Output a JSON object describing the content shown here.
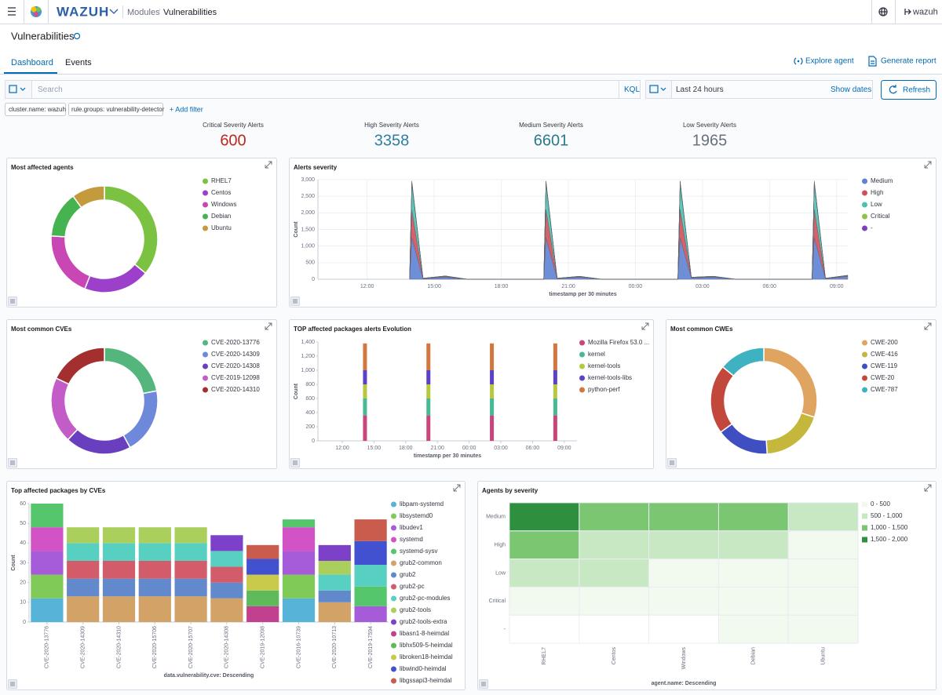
{
  "header": {
    "brand": "WAZUH",
    "breadcrumb": [
      "Modules",
      "/",
      "Vulnerabilities"
    ],
    "user": "wazuh"
  },
  "page_title": "Vulnerabilities",
  "tabs": [
    "Dashboard",
    "Events"
  ],
  "actions": [
    "Explore agent",
    "Generate report"
  ],
  "query_bar": {
    "placeholder": "Search",
    "language": "KQL",
    "time_range": "Last 24 hours",
    "show_dates": "Show dates",
    "refresh": "Refresh"
  },
  "filters": [
    "cluster.name: wazuh",
    "rule.groups: vulnerability-detector"
  ],
  "add_filter": "+ Add filter",
  "metrics": [
    {
      "label": "Critical Severity Alerts",
      "value": 600,
      "color": "#bd271e"
    },
    {
      "label": "High Severity Alerts",
      "value": 3358,
      "color": "#2f7ea2"
    },
    {
      "label": "Medium Severity Alerts",
      "value": 6601,
      "color": "#2a7a8c"
    },
    {
      "label": "Low Severity Alerts",
      "value": 1965,
      "color": "#69707d"
    }
  ],
  "chart_data": [
    {
      "type": "pie",
      "title": "Most affected agents",
      "categories": [
        "RHEL7",
        "Centos",
        "Windows",
        "Debian",
        "Ubuntu"
      ],
      "values": [
        36,
        20,
        20,
        14,
        10
      ],
      "colors": [
        "#7cc242",
        "#9c3fcb",
        "#c947b5",
        "#44b350",
        "#c39a3c"
      ]
    },
    {
      "type": "area",
      "title": "Alerts severity",
      "stacked": true,
      "grid": true,
      "xlabel": "timestamp per 30 minutes",
      "ylabel": "Count",
      "x": [
        13.9,
        14.0,
        14.5,
        15.5,
        16.5,
        19.9,
        20.0,
        20.5,
        21.5,
        22.5,
        25.9,
        26.0,
        26.5,
        27.5,
        28.5,
        31.9,
        32.0,
        32.5,
        33.5
      ],
      "xlim": [
        9.8,
        33.5
      ],
      "xticks": [
        {
          "value": 12,
          "label": "12:00"
        },
        {
          "value": 15,
          "label": "15:00"
        },
        {
          "value": 18,
          "label": "18:00"
        },
        {
          "value": 21,
          "label": "21:00"
        },
        {
          "value": 24,
          "label": "00:00"
        },
        {
          "value": 27,
          "label": "03:00"
        },
        {
          "value": 30,
          "label": "06:00"
        },
        {
          "value": 33,
          "label": "09:00"
        }
      ],
      "ylim": [
        0,
        3000
      ],
      "yticks": [
        0,
        500,
        {
          "value": 1000,
          "label": "1,000"
        },
        {
          "value": 1500,
          "label": "1,500"
        },
        {
          "value": 2000,
          "label": "2,000"
        },
        {
          "value": 2500,
          "label": "2,500"
        },
        {
          "value": 3000,
          "label": "3,000"
        }
      ],
      "series": [
        {
          "name": "Medium",
          "color": "#5f82d4",
          "values": [
            0,
            1250,
            20,
            60,
            0,
            0,
            1250,
            20,
            60,
            0,
            0,
            1250,
            40,
            60,
            0,
            0,
            1250,
            20,
            80
          ]
        },
        {
          "name": "High",
          "color": "#d2505a",
          "values": [
            0,
            850,
            5,
            20,
            0,
            0,
            850,
            5,
            15,
            0,
            0,
            850,
            10,
            15,
            0,
            0,
            850,
            5,
            20
          ]
        },
        {
          "name": "Low",
          "color": "#4dc1b1",
          "values": [
            0,
            780,
            5,
            15,
            0,
            0,
            780,
            5,
            10,
            0,
            0,
            780,
            10,
            10,
            0,
            0,
            780,
            5,
            15
          ]
        },
        {
          "name": "Critical",
          "color": "#8cc34b",
          "values": [
            0,
            60,
            0,
            5,
            0,
            0,
            60,
            0,
            5,
            0,
            0,
            60,
            0,
            5,
            0,
            0,
            60,
            0,
            5
          ]
        },
        {
          "name": "-",
          "color": "#7b3fbf",
          "values": [
            0,
            20,
            0,
            0,
            0,
            0,
            20,
            0,
            0,
            0,
            0,
            20,
            0,
            0,
            0,
            0,
            20,
            0,
            0
          ]
        }
      ]
    },
    {
      "type": "pie",
      "title": "Most common CVEs",
      "categories": [
        "CVE-2020-13776",
        "CVE-2020-14309",
        "CVE-2020-14308",
        "CVE-2019-12098",
        "CVE-2020-14310"
      ],
      "values": [
        22,
        20,
        20,
        20,
        18
      ],
      "colors": [
        "#54b67c",
        "#6f89da",
        "#6a3fbf",
        "#c45cc8",
        "#a3302f"
      ]
    },
    {
      "type": "bar",
      "title": "TOP affected packages alerts Evolution",
      "stacked": true,
      "grid": false,
      "xlabel": "timestamp per 30 minutes",
      "ylabel": "Count",
      "x": [
        14.15,
        20.15,
        26.15,
        32.15
      ],
      "xlim": [
        9.7,
        34.2
      ],
      "xticks": [
        {
          "value": 12,
          "label": "12:00"
        },
        {
          "value": 15,
          "label": "15:00"
        },
        {
          "value": 18,
          "label": "18:00"
        },
        {
          "value": 21,
          "label": "21:00"
        },
        {
          "value": 24,
          "label": "00:00"
        },
        {
          "value": 27,
          "label": "03:00"
        },
        {
          "value": 30,
          "label": "06:00"
        },
        {
          "value": 33,
          "label": "09:00"
        }
      ],
      "ylim": [
        0,
        1400
      ],
      "yticks": [
        0,
        200,
        400,
        600,
        800,
        {
          "value": 1000,
          "label": "1,000"
        },
        {
          "value": 1200,
          "label": "1,200"
        },
        {
          "value": 1400,
          "label": "1,400"
        }
      ],
      "series": [
        {
          "name": "Mozilla Firefox 53.0 ...",
          "color": "#c9457c",
          "values": [
            360,
            360,
            360,
            360
          ]
        },
        {
          "name": "kernel",
          "color": "#47b995",
          "values": [
            240,
            240,
            240,
            240
          ]
        },
        {
          "name": "kernel-tools",
          "color": "#b8c83c",
          "values": [
            200,
            200,
            200,
            200
          ]
        },
        {
          "name": "kernel-tools-libs",
          "color": "#5b40c8",
          "values": [
            200,
            200,
            200,
            200
          ]
        },
        {
          "name": "python-perf",
          "color": "#d2773f",
          "values": [
            380,
            380,
            380,
            380
          ]
        }
      ]
    },
    {
      "type": "pie",
      "title": "Most common CWEs",
      "categories": [
        "CWE-200",
        "CWE-416",
        "CWE-119",
        "CWE-20",
        "CWE-787"
      ],
      "values": [
        30,
        19,
        16,
        21,
        14
      ],
      "colors": [
        "#e0a461",
        "#c5b63c",
        "#3f4ec0",
        "#c2483b",
        "#3eb2c0"
      ]
    },
    {
      "type": "bar",
      "title": "Top affected packages by CVEs",
      "stacked": true,
      "grid": false,
      "xlabel": "data.vulnerability.cve: Descending",
      "ylabel": "Count",
      "categories": [
        "CVE-2020-13776",
        "CVE-2020-14309",
        "CVE-2020-14310",
        "CVE-2020-15706",
        "CVE-2020-15707",
        "CVE-2020-14308",
        "CVE-2019-12098",
        "CVE-2016-10739",
        "CVE-2020-10713",
        "CVE-2019-17594"
      ],
      "ylim": [
        0,
        60
      ],
      "yticks": [
        0,
        10,
        20,
        30,
        40,
        50,
        60
      ],
      "series": [
        {
          "name": "libpam-systemd",
          "color": "#56b4d8",
          "values": [
            12,
            null,
            null,
            null,
            null,
            null,
            null,
            12,
            null,
            null
          ]
        },
        {
          "name": "libsystemd0",
          "color": "#80ca57",
          "values": [
            12,
            null,
            null,
            null,
            null,
            null,
            null,
            12,
            null,
            null
          ]
        },
        {
          "name": "libudev1",
          "color": "#a65bd8",
          "values": [
            12,
            null,
            null,
            null,
            null,
            null,
            null,
            12,
            null,
            8
          ]
        },
        {
          "name": "systemd",
          "color": "#d253c6",
          "values": [
            12,
            null,
            null,
            null,
            null,
            null,
            null,
            12,
            null,
            null
          ]
        },
        {
          "name": "systemd-sysv",
          "color": "#56c66c",
          "values": [
            12,
            null,
            null,
            null,
            null,
            null,
            null,
            4,
            null,
            10
          ]
        },
        {
          "name": "grub2-common",
          "color": "#d2a267",
          "values": [
            null,
            13,
            13,
            13,
            13,
            12,
            null,
            null,
            10,
            null
          ]
        },
        {
          "name": "grub2",
          "color": "#6389cd",
          "values": [
            null,
            9,
            9,
            9,
            9,
            8,
            null,
            null,
            6,
            null
          ]
        },
        {
          "name": "grub2-pc",
          "color": "#d35c6b",
          "values": [
            null,
            9,
            9,
            9,
            9,
            8,
            null,
            null,
            null,
            null
          ]
        },
        {
          "name": "grub2-pc-modules",
          "color": "#57d0c1",
          "values": [
            null,
            9,
            9,
            9,
            9,
            8,
            null,
            null,
            8,
            11
          ]
        },
        {
          "name": "grub2-tools",
          "color": "#abcf5d",
          "values": [
            null,
            8,
            8,
            8,
            8,
            null,
            null,
            null,
            7,
            null
          ]
        },
        {
          "name": "grub2-tools-extra",
          "color": "#7c41c8",
          "values": [
            null,
            null,
            null,
            null,
            null,
            8,
            null,
            null,
            8,
            null
          ]
        },
        {
          "name": "libasn1-8-heimdal",
          "color": "#c2418e",
          "values": [
            null,
            null,
            null,
            null,
            null,
            null,
            8,
            null,
            null,
            null
          ]
        },
        {
          "name": "libhx509-5-heimdal",
          "color": "#5fba5c",
          "values": [
            null,
            null,
            null,
            null,
            null,
            null,
            8,
            null,
            null,
            null
          ]
        },
        {
          "name": "libroken18-heimdal",
          "color": "#c9ca4c",
          "values": [
            null,
            null,
            null,
            null,
            null,
            null,
            8,
            null,
            null,
            null
          ]
        },
        {
          "name": "libwind0-heimdal",
          "color": "#4151d0",
          "values": [
            null,
            null,
            null,
            null,
            null,
            null,
            8,
            null,
            null,
            12
          ]
        },
        {
          "name": "libgssapi3-heimdal",
          "color": "#c95c4c",
          "values": [
            null,
            null,
            null,
            null,
            null,
            null,
            7,
            null,
            null,
            11
          ]
        }
      ]
    },
    {
      "type": "heatmap",
      "title": "Agents by severity",
      "xlabel": "agent.name: Descending",
      "x_categories": [
        "RHEL7",
        "Centos",
        "Windows",
        "Debian",
        "Ubuntu"
      ],
      "y_categories": [
        "Medium",
        "High",
        "Low",
        "Critical",
        "-"
      ],
      "values": [
        [
          1800,
          1200,
          1200,
          1200,
          700
        ],
        [
          1200,
          700,
          700,
          700,
          200
        ],
        [
          700,
          700,
          200,
          200,
          200
        ],
        [
          200,
          200,
          200,
          200,
          200
        ],
        [
          null,
          null,
          null,
          200,
          200
        ]
      ],
      "legend": [
        {
          "label": "0 - 500",
          "from": 0,
          "to": 500,
          "color": "#f2f9ef"
        },
        {
          "label": "500 - 1,000",
          "from": 500,
          "to": 1000,
          "color": "#c7e8c2"
        },
        {
          "label": "1,000 - 1,500",
          "from": 1000,
          "to": 1500,
          "color": "#7ac671"
        },
        {
          "label": "1,500 - 2,000",
          "from": 1500,
          "to": 2000,
          "color": "#2e8f3e"
        }
      ]
    }
  ]
}
